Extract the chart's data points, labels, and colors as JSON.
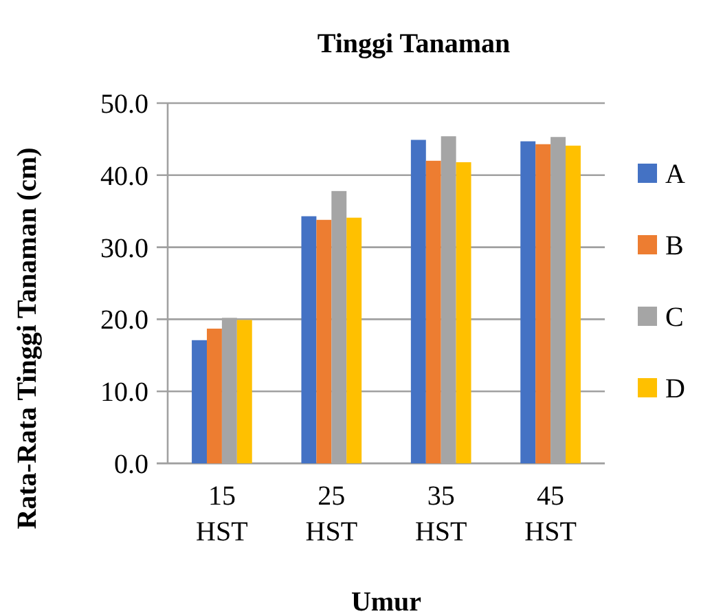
{
  "chart_data": {
    "type": "bar",
    "title": "Tinggi Tanaman",
    "xlabel": "Umur",
    "ylabel": "Rata-Rata Tinggi Tanaman (cm)",
    "categories": [
      "15 HST",
      "25 HST",
      "35 HST",
      "45 HST"
    ],
    "series": [
      {
        "name": "A",
        "color": "#4472c4",
        "values": [
          17.1,
          34.3,
          44.9,
          44.7
        ]
      },
      {
        "name": "B",
        "color": "#ed7d31",
        "values": [
          18.7,
          33.8,
          42.0,
          44.3
        ]
      },
      {
        "name": "C",
        "color": "#a5a5a5",
        "values": [
          20.2,
          37.8,
          45.4,
          45.3
        ]
      },
      {
        "name": "D",
        "color": "#ffc000",
        "values": [
          19.9,
          34.1,
          41.8,
          44.1
        ]
      }
    ],
    "ylim": [
      0,
      50
    ],
    "yticks": [
      {
        "value": 0,
        "label": "0.0"
      },
      {
        "value": 10,
        "label": "10.0"
      },
      {
        "value": 20,
        "label": "20.0"
      },
      {
        "value": 30,
        "label": "30.0"
      },
      {
        "value": 40,
        "label": "40.0"
      },
      {
        "value": 50,
        "label": "50.0"
      }
    ],
    "grid": "y",
    "legend": "right"
  }
}
